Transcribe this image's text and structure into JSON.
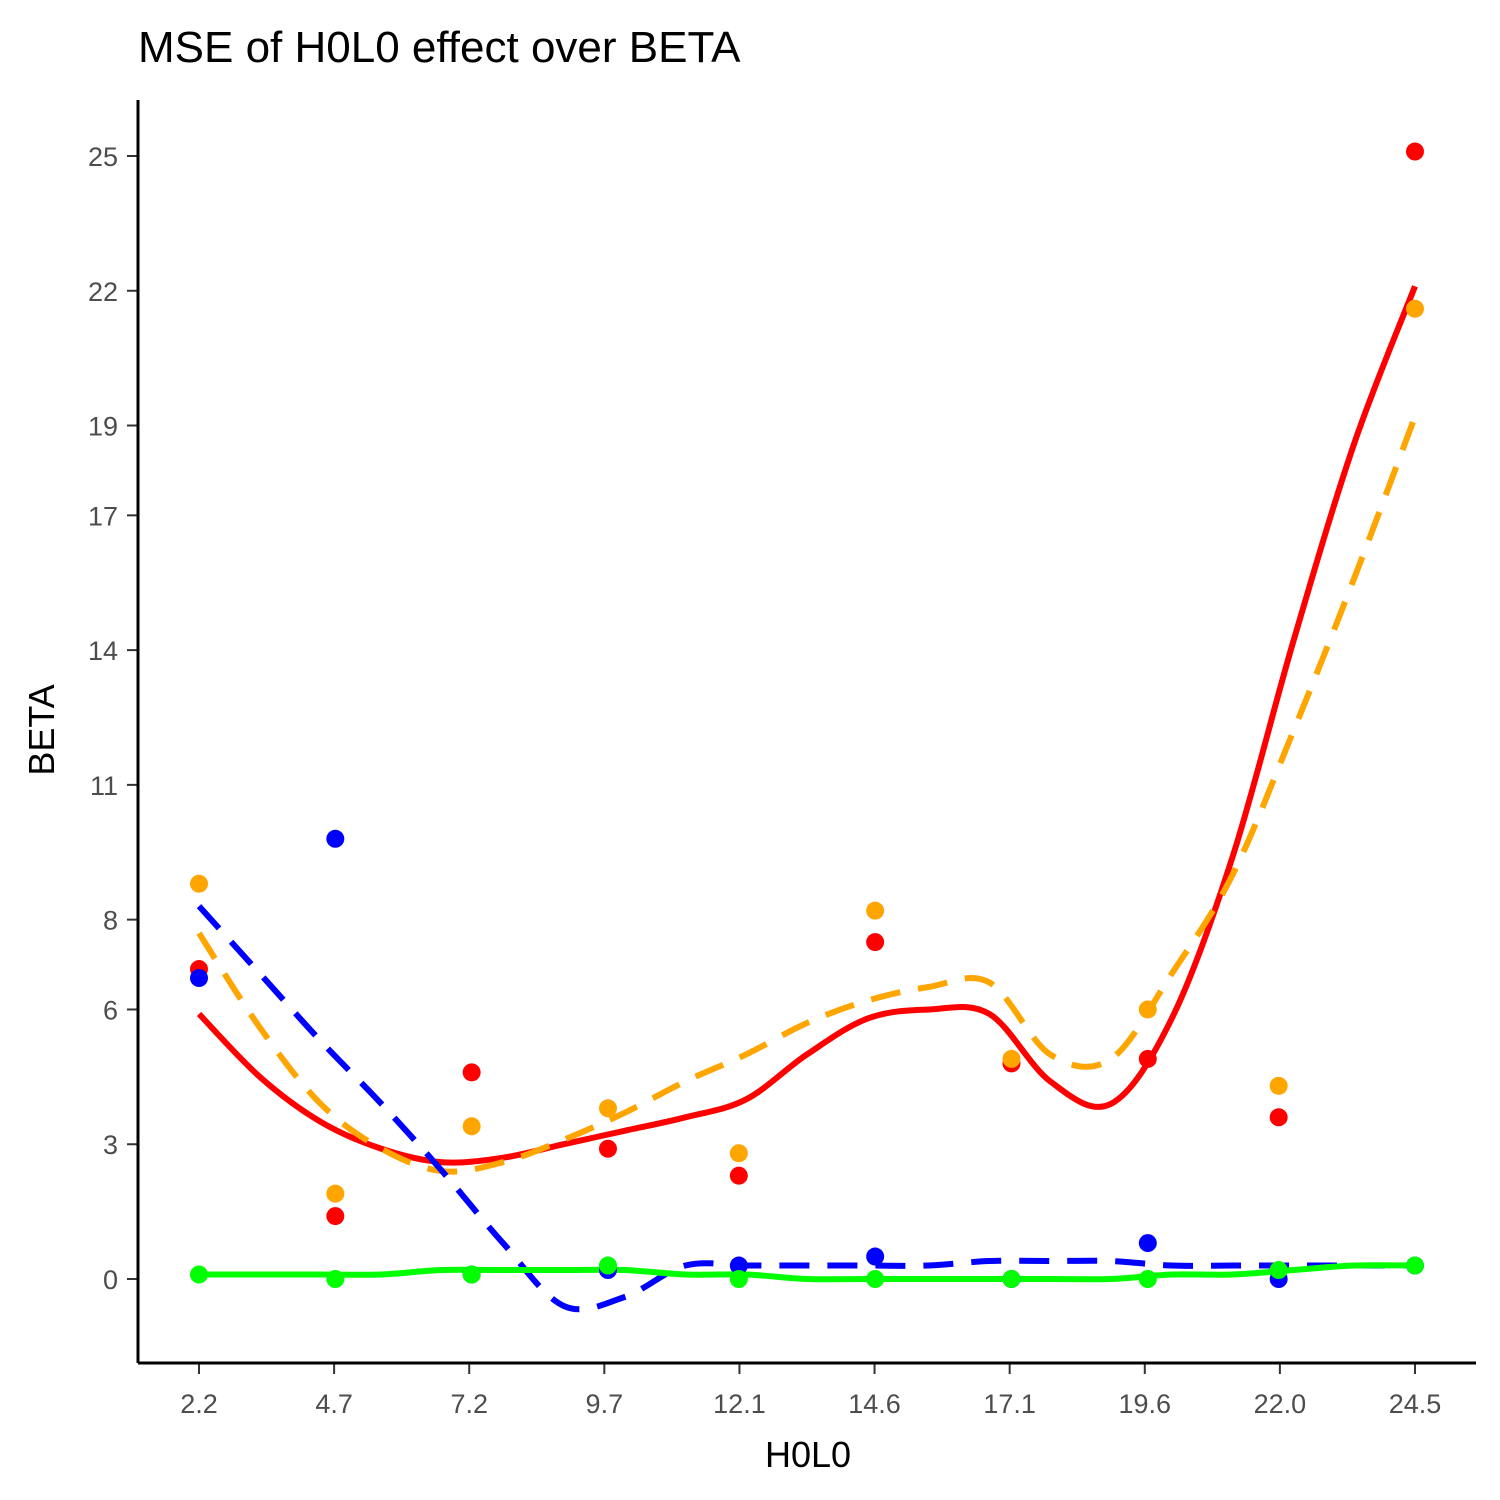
{
  "chart_data": {
    "type": "scatter",
    "title": "MSE of H0L0 effect over  BETA",
    "xlabel": "H0L0",
    "ylabel": "BETA",
    "x_ticks": [
      "2.2",
      "4.7",
      "7.2",
      "9.7",
      "12.1",
      "14.6",
      "17.1",
      "19.6",
      "22.0",
      "24.5"
    ],
    "y_ticks": [
      0,
      3,
      6,
      8,
      11,
      14,
      17,
      19,
      22,
      25
    ],
    "xlim": [
      2.2,
      24.5
    ],
    "ylim": [
      -1.9,
      26.3
    ],
    "grid": false,
    "legend": "none",
    "x": [
      2.2,
      4.7,
      7.2,
      9.7,
      12.1,
      14.6,
      17.1,
      19.6,
      22.0,
      24.5
    ],
    "series": [
      {
        "color": "#ff0000",
        "line_style": "solid",
        "points": [
          6.9,
          1.4,
          4.6,
          2.9,
          2.3,
          7.5,
          4.8,
          4.9,
          3.6,
          25.1
        ],
        "smooth": [
          5.9,
          4.5,
          3.5,
          2.9,
          2.6,
          2.7,
          3.0,
          3.3,
          3.6,
          4.0,
          5.0,
          5.8,
          6.0,
          5.9,
          4.4,
          3.9,
          5.8,
          9.4,
          14.2,
          18.6,
          22.1
        ]
      },
      {
        "color": "#ffa500",
        "line_style": "dashed",
        "points": [
          8.8,
          1.9,
          3.4,
          3.8,
          2.8,
          8.2,
          4.9,
          6.0,
          4.3,
          21.6
        ],
        "smooth": [
          7.7,
          5.6,
          3.9,
          2.9,
          2.4,
          2.6,
          3.1,
          3.7,
          4.4,
          5.0,
          5.7,
          6.2,
          6.5,
          6.6,
          5.0,
          4.9,
          6.8,
          9.0,
          12.2,
          15.6,
          19.2
        ]
      },
      {
        "color": "#0000ff",
        "line_style": "dashed",
        "points": [
          6.7,
          9.8,
          0.1,
          0.2,
          0.3,
          0.5,
          0.0,
          0.8,
          0.0,
          0.3
        ],
        "smooth": [
          8.3,
          6.8,
          5.3,
          3.9,
          2.4,
          0.8,
          -0.6,
          -0.4,
          0.3,
          0.3,
          0.3,
          0.3,
          0.3,
          0.4,
          0.4,
          0.4,
          0.3,
          0.3,
          0.3,
          0.3,
          0.3
        ]
      },
      {
        "color": "#00ff00",
        "line_style": "solid",
        "points": [
          0.1,
          0.0,
          0.1,
          0.3,
          0.0,
          0.0,
          0.0,
          0.0,
          0.2,
          0.3
        ],
        "smooth": [
          0.1,
          0.1,
          0.1,
          0.1,
          0.2,
          0.2,
          0.2,
          0.2,
          0.1,
          0.1,
          0.0,
          0.0,
          0.0,
          0.0,
          0.0,
          0.0,
          0.1,
          0.1,
          0.2,
          0.3,
          0.3
        ]
      }
    ]
  }
}
